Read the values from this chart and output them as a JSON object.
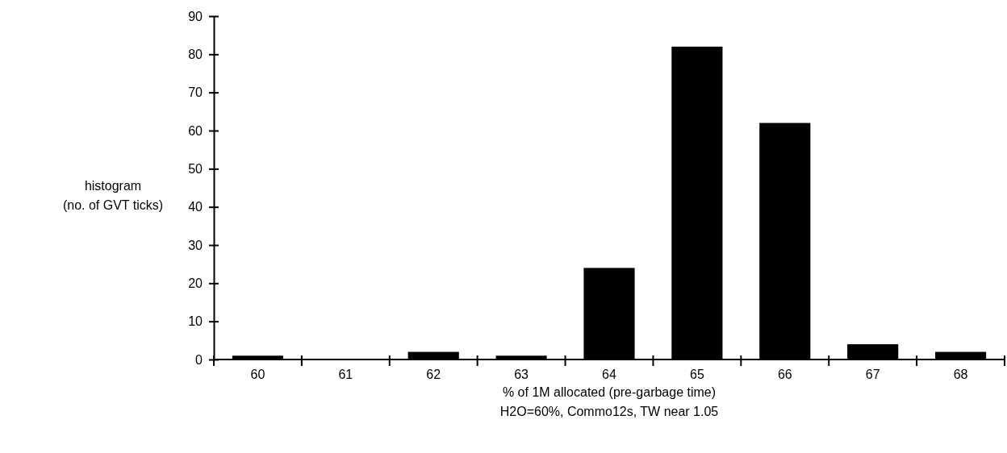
{
  "chart_data": {
    "type": "bar",
    "categories": [
      "60",
      "61",
      "62",
      "63",
      "64",
      "65",
      "66",
      "67",
      "68"
    ],
    "values": [
      1,
      0,
      2,
      1,
      24,
      82,
      62,
      4,
      2
    ],
    "color": "#000000",
    "ylim": [
      0,
      90
    ],
    "yticks": [
      0,
      10,
      20,
      30,
      40,
      50,
      60,
      70,
      80,
      90
    ],
    "ylabel": "histogram\n(no. of GVT ticks)",
    "xlabel": "% of 1M allocated (pre-garbage time)",
    "annotations": [
      "H2O=60%, Commo12s, TW near 1.05"
    ],
    "grid": false
  }
}
